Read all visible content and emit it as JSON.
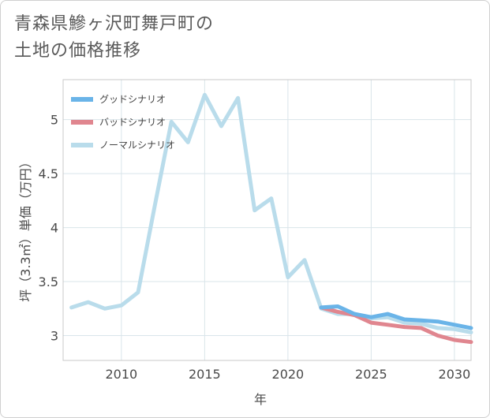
{
  "title": {
    "line1": "青森県鰺ヶ沢町舞戸町の",
    "line2": "土地の価格推移"
  },
  "chart_data": {
    "type": "line",
    "title": "青森県鰺ヶ沢町舞戸町の土地の価格推移",
    "xlabel": "年",
    "ylabel": "坪（3.3㎡）単価（万円）",
    "xlim": [
      2006.5,
      2031
    ],
    "ylim": [
      2.77,
      5.37
    ],
    "xticks": [
      2010,
      2015,
      2020,
      2025,
      2030
    ],
    "yticks": [
      3,
      3.5,
      4,
      4.5,
      5
    ],
    "ytick_labels": [
      "3",
      "3.5",
      "4",
      "4.5",
      "5"
    ],
    "grid": true,
    "legend_position": "top-left",
    "series": [
      {
        "name": "グッドシナリオ",
        "color": "#6ab4e8",
        "x": [
          2022,
          2023,
          2024,
          2025,
          2026,
          2027,
          2028,
          2029,
          2030,
          2031
        ],
        "values": [
          3.26,
          3.27,
          3.2,
          3.17,
          3.2,
          3.15,
          3.14,
          3.13,
          3.1,
          3.07
        ]
      },
      {
        "name": "バッドシナリオ",
        "color": "#e0868f",
        "x": [
          2022,
          2023,
          2024,
          2025,
          2026,
          2027,
          2028,
          2029,
          2030,
          2031
        ],
        "values": [
          3.26,
          3.22,
          3.19,
          3.12,
          3.1,
          3.08,
          3.07,
          3.0,
          2.96,
          2.94
        ]
      },
      {
        "name": "ノーマルシナリオ",
        "color": "#b9dceb",
        "x": [
          2007,
          2008,
          2009,
          2010,
          2011,
          2012,
          2013,
          2014,
          2015,
          2016,
          2017,
          2018,
          2019,
          2020,
          2021,
          2022,
          2023,
          2024,
          2025,
          2026,
          2027,
          2028,
          2029,
          2030,
          2031
        ],
        "values": [
          3.26,
          3.31,
          3.25,
          3.28,
          3.4,
          4.2,
          4.98,
          4.79,
          5.23,
          4.94,
          5.2,
          4.16,
          4.27,
          3.54,
          3.7,
          3.25,
          3.2,
          3.2,
          3.16,
          3.17,
          3.12,
          3.11,
          3.07,
          3.06,
          3.03
        ]
      }
    ]
  }
}
